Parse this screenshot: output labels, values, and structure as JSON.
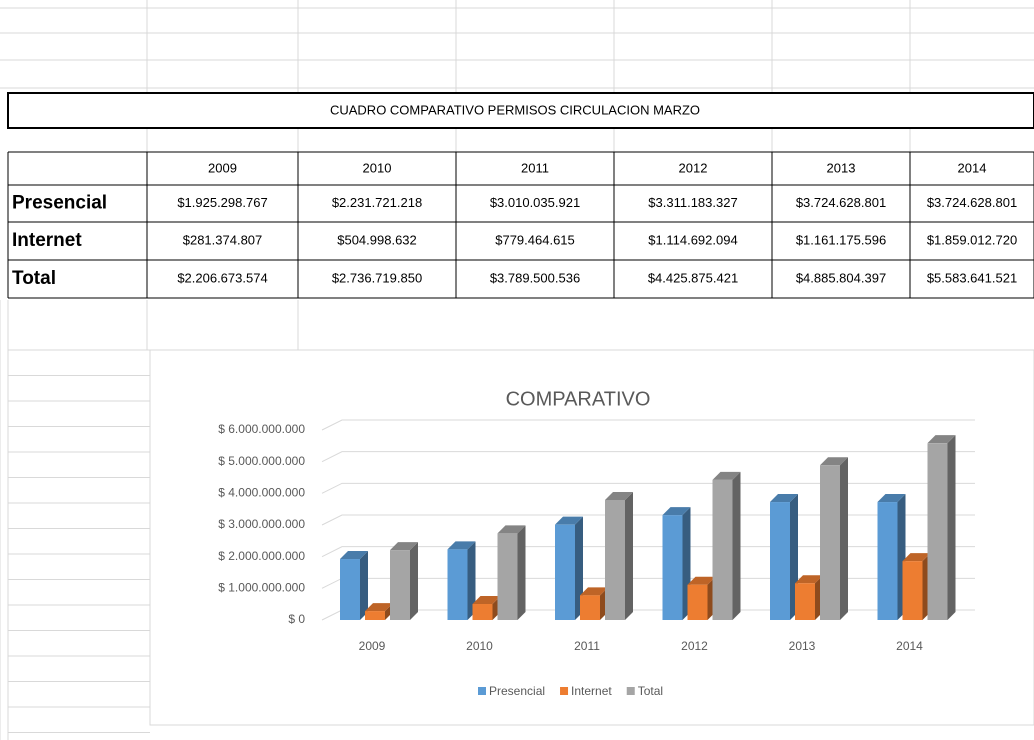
{
  "table": {
    "title": "CUADRO COMPARATIVO PERMISOS CIRCULACION MARZO",
    "columns": [
      "2009",
      "2010",
      "2011",
      "2012",
      "2013",
      "2014"
    ],
    "rows": [
      [
        "Presencial",
        "$1.925.298.767",
        "$2.231.721.218",
        "$3.010.035.921",
        "$3.311.183.327",
        "$3.724.628.801",
        "$3.724.628.801"
      ],
      [
        "Internet",
        "$281.374.807",
        "$504.998.632",
        "$779.464.615",
        "$1.114.692.094",
        "$1.161.175.596",
        "$1.859.012.720"
      ],
      [
        "Total",
        "$2.206.673.574",
        "$2.736.719.850",
        "$3.789.500.536",
        "$4.425.875.421",
        "$4.885.804.397",
        "$5.583.641.521"
      ]
    ]
  },
  "chart_data": {
    "type": "bar3d",
    "title": "COMPARATIVO",
    "categories": [
      "2009",
      "2010",
      "2011",
      "2012",
      "2013",
      "2014"
    ],
    "series": [
      {
        "name": "Presencial",
        "color": "#5b9bd5",
        "values": [
          1925298767,
          2231721218,
          3010035921,
          3311183327,
          3724628801,
          3724628801
        ]
      },
      {
        "name": "Internet",
        "color": "#ed7d31",
        "values": [
          281374807,
          504998632,
          779464615,
          1114692094,
          1161175596,
          1859012720
        ]
      },
      {
        "name": "Total",
        "color": "#a5a5a5",
        "values": [
          2206673574,
          2736719850,
          3789500536,
          4425875421,
          4885804397,
          5583641521
        ]
      }
    ],
    "ylim": [
      0,
      6000000000
    ],
    "yticks": [
      {
        "value": 0,
        "label": "$ 0"
      },
      {
        "value": 1000000000,
        "label": "$ 1.000.000.000"
      },
      {
        "value": 2000000000,
        "label": "$ 2.000.000.000"
      },
      {
        "value": 3000000000,
        "label": "$ 3.000.000.000"
      },
      {
        "value": 4000000000,
        "label": "$ 4.000.000.000"
      },
      {
        "value": 5000000000,
        "label": "$ 5.000.000.000"
      },
      {
        "value": 6000000000,
        "label": "$ 6.000.000.000"
      }
    ],
    "grid": true,
    "legend": "bottom"
  }
}
